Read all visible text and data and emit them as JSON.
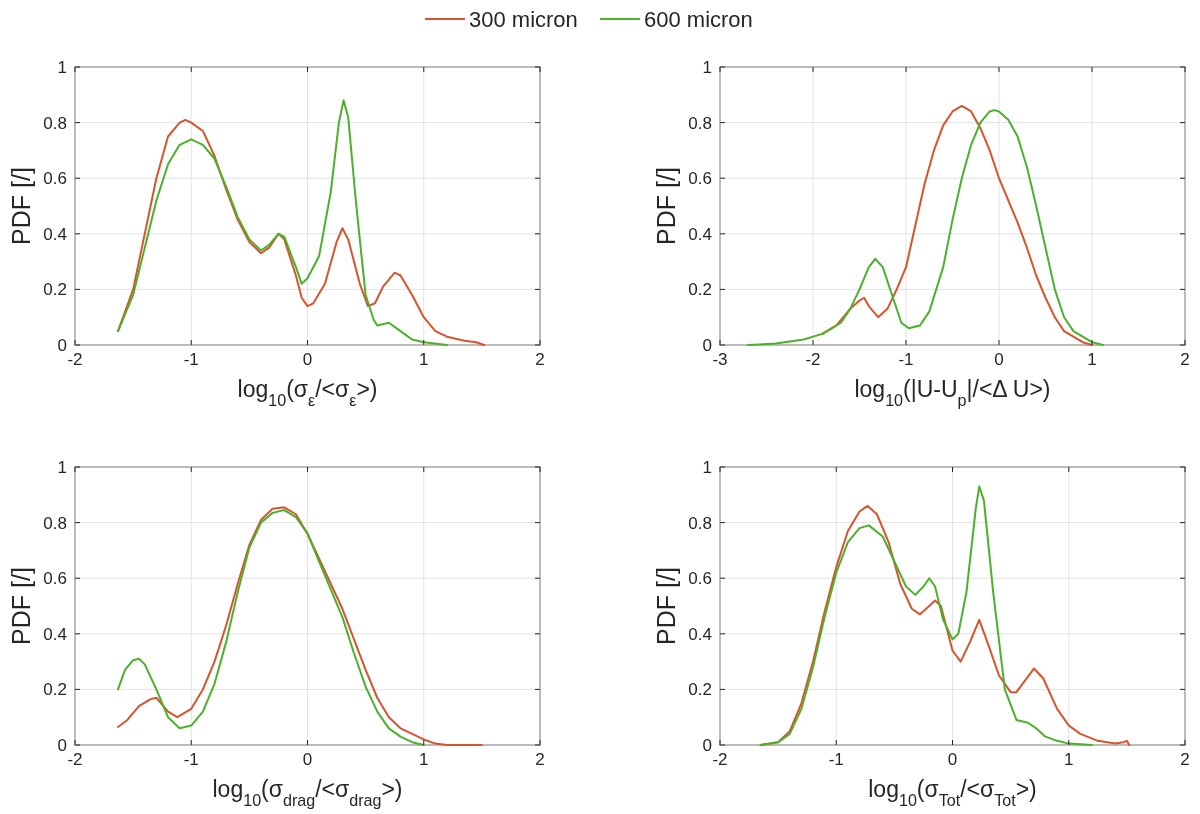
{
  "chart_data": [
    {
      "type": "line",
      "xlabel": "log$_{10}$(σ$_{ε}$/<σ$_{ε}$>)",
      "ylabel": "PDF [/]",
      "xlim": [
        -2,
        2
      ],
      "ylim": [
        0,
        1
      ],
      "xticks": [
        -2,
        -1,
        0,
        1,
        2
      ],
      "yticks": [
        0,
        0.2,
        0.4,
        0.6,
        0.8,
        1
      ],
      "grid": true,
      "legend": "top",
      "series": [
        {
          "name": "300 micron",
          "color": "#d4552e",
          "x": [
            -1.63,
            -1.5,
            -1.4,
            -1.3,
            -1.2,
            -1.1,
            -1.05,
            -1,
            -0.9,
            -0.8,
            -0.7,
            -0.6,
            -0.5,
            -0.4,
            -0.33,
            -0.25,
            -0.2,
            -0.1,
            -0.05,
            0,
            0.05,
            0.15,
            0.25,
            0.3,
            0.35,
            0.45,
            0.52,
            0.58,
            0.65,
            0.75,
            0.8,
            0.9,
            1,
            1.1,
            1.2,
            1.35,
            1.45,
            1.52
          ],
          "values": [
            0.05,
            0.2,
            0.4,
            0.6,
            0.75,
            0.8,
            0.81,
            0.8,
            0.77,
            0.68,
            0.56,
            0.45,
            0.37,
            0.33,
            0.35,
            0.4,
            0.38,
            0.25,
            0.17,
            0.14,
            0.15,
            0.22,
            0.37,
            0.42,
            0.38,
            0.22,
            0.14,
            0.15,
            0.21,
            0.26,
            0.25,
            0.18,
            0.1,
            0.05,
            0.03,
            0.015,
            0.01,
            0
          ]
        },
        {
          "name": "600 micron",
          "color": "#4cb02c",
          "x": [
            -1.63,
            -1.5,
            -1.4,
            -1.3,
            -1.2,
            -1.1,
            -1,
            -0.9,
            -0.8,
            -0.7,
            -0.6,
            -0.5,
            -0.4,
            -0.33,
            -0.25,
            -0.2,
            -0.1,
            -0.05,
            0,
            0.1,
            0.2,
            0.27,
            0.31,
            0.35,
            0.42,
            0.5,
            0.57,
            0.6,
            0.7,
            0.8,
            0.9,
            1,
            1.2
          ],
          "values": [
            0.05,
            0.18,
            0.35,
            0.52,
            0.65,
            0.72,
            0.74,
            0.72,
            0.67,
            0.57,
            0.46,
            0.38,
            0.34,
            0.36,
            0.4,
            0.39,
            0.28,
            0.22,
            0.24,
            0.32,
            0.55,
            0.8,
            0.88,
            0.82,
            0.5,
            0.18,
            0.09,
            0.07,
            0.08,
            0.05,
            0.02,
            0.01,
            0
          ]
        }
      ]
    },
    {
      "type": "line",
      "xlabel": "log$_{10}$(|U-U$_{p}$|/<Δ  U>)",
      "ylabel": "PDF [/]",
      "xlim": [
        -3,
        2
      ],
      "ylim": [
        0,
        1
      ],
      "xticks": [
        -3,
        -2,
        -1,
        0,
        1,
        2
      ],
      "yticks": [
        0,
        0.2,
        0.4,
        0.6,
        0.8,
        1
      ],
      "grid": true,
      "series": [
        {
          "color": "#d4552e",
          "x": [
            -1.9,
            -1.75,
            -1.6,
            -1.5,
            -1.45,
            -1.4,
            -1.3,
            -1.2,
            -1.1,
            -1,
            -0.9,
            -0.8,
            -0.7,
            -0.6,
            -0.5,
            -0.4,
            -0.3,
            -0.2,
            -0.1,
            0,
            0.1,
            0.2,
            0.3,
            0.4,
            0.5,
            0.6,
            0.7,
            0.8,
            0.9,
            1
          ],
          "values": [
            0.04,
            0.07,
            0.13,
            0.16,
            0.17,
            0.14,
            0.1,
            0.13,
            0.2,
            0.28,
            0.43,
            0.58,
            0.7,
            0.79,
            0.84,
            0.86,
            0.84,
            0.78,
            0.7,
            0.6,
            0.52,
            0.44,
            0.35,
            0.25,
            0.17,
            0.1,
            0.05,
            0.03,
            0.01,
            0
          ]
        },
        {
          "color": "#4cb02c",
          "x": [
            -2.7,
            -2.4,
            -2.1,
            -1.9,
            -1.7,
            -1.6,
            -1.5,
            -1.4,
            -1.33,
            -1.25,
            -1.15,
            -1.05,
            -0.97,
            -0.85,
            -0.75,
            -0.6,
            -0.5,
            -0.4,
            -0.3,
            -0.2,
            -0.1,
            -0.05,
            0,
            0.1,
            0.2,
            0.3,
            0.4,
            0.5,
            0.6,
            0.7,
            0.8,
            0.9,
            1,
            1.12
          ],
          "values": [
            0,
            0.005,
            0.02,
            0.04,
            0.08,
            0.13,
            0.2,
            0.28,
            0.31,
            0.28,
            0.18,
            0.08,
            0.06,
            0.07,
            0.12,
            0.28,
            0.45,
            0.6,
            0.72,
            0.8,
            0.84,
            0.845,
            0.84,
            0.81,
            0.75,
            0.64,
            0.5,
            0.35,
            0.2,
            0.1,
            0.05,
            0.03,
            0.01,
            0
          ]
        }
      ]
    },
    {
      "type": "line",
      "xlabel": "log$_{10}$(σ$_{drag}$/<σ$_{drag}$>)",
      "ylabel": "PDF [/]",
      "xlim": [
        -2,
        2
      ],
      "ylim": [
        0,
        1
      ],
      "xticks": [
        -2,
        -1,
        0,
        1,
        2
      ],
      "yticks": [
        0,
        0.2,
        0.4,
        0.6,
        0.8,
        1
      ],
      "grid": true,
      "series": [
        {
          "color": "#d4552e",
          "x": [
            -1.63,
            -1.55,
            -1.45,
            -1.35,
            -1.3,
            -1.2,
            -1.12,
            -1,
            -0.9,
            -0.8,
            -0.7,
            -0.6,
            -0.5,
            -0.4,
            -0.3,
            -0.2,
            -0.1,
            0,
            0.1,
            0.2,
            0.3,
            0.4,
            0.5,
            0.6,
            0.7,
            0.8,
            0.9,
            1,
            1.1,
            1.2,
            1.5
          ],
          "values": [
            0.065,
            0.09,
            0.14,
            0.165,
            0.17,
            0.12,
            0.1,
            0.13,
            0.2,
            0.3,
            0.43,
            0.58,
            0.72,
            0.81,
            0.85,
            0.855,
            0.83,
            0.76,
            0.67,
            0.58,
            0.49,
            0.38,
            0.27,
            0.17,
            0.1,
            0.06,
            0.04,
            0.02,
            0.005,
            0,
            0
          ]
        },
        {
          "color": "#4cb02c",
          "x": [
            -1.63,
            -1.57,
            -1.5,
            -1.45,
            -1.4,
            -1.3,
            -1.2,
            -1.1,
            -1,
            -0.9,
            -0.8,
            -0.7,
            -0.6,
            -0.5,
            -0.4,
            -0.3,
            -0.2,
            -0.1,
            0,
            0.1,
            0.2,
            0.3,
            0.4,
            0.5,
            0.6,
            0.7,
            0.8,
            0.9,
            1
          ],
          "values": [
            0.2,
            0.27,
            0.305,
            0.31,
            0.29,
            0.2,
            0.1,
            0.06,
            0.07,
            0.12,
            0.22,
            0.37,
            0.55,
            0.71,
            0.8,
            0.835,
            0.845,
            0.82,
            0.76,
            0.66,
            0.56,
            0.46,
            0.33,
            0.21,
            0.12,
            0.06,
            0.03,
            0.01,
            0
          ]
        }
      ]
    },
    {
      "type": "line",
      "xlabel": "log$_{10}$(σ$_{Tot}$/<σ$_{Tot}$>)",
      "ylabel": "PDF [/]",
      "xlim": [
        -2,
        2
      ],
      "ylim": [
        0,
        1
      ],
      "xticks": [
        -2,
        -1,
        0,
        1,
        2
      ],
      "yticks": [
        0,
        0.2,
        0.4,
        0.6,
        0.8,
        1
      ],
      "grid": true,
      "series": [
        {
          "color": "#d4552e",
          "x": [
            -1.65,
            -1.5,
            -1.4,
            -1.3,
            -1.2,
            -1.1,
            -1,
            -0.9,
            -0.8,
            -0.73,
            -0.65,
            -0.55,
            -0.45,
            -0.35,
            -0.28,
            -0.2,
            -0.15,
            -0.1,
            -0.05,
            0,
            0.07,
            0.15,
            0.23,
            0.3,
            0.4,
            0.5,
            0.55,
            0.62,
            0.7,
            0.78,
            0.9,
            1,
            1.1,
            1.25,
            1.4,
            1.47,
            1.5,
            1.52
          ],
          "values": [
            0,
            0.01,
            0.05,
            0.15,
            0.3,
            0.48,
            0.64,
            0.77,
            0.84,
            0.86,
            0.83,
            0.73,
            0.58,
            0.49,
            0.47,
            0.5,
            0.52,
            0.5,
            0.42,
            0.34,
            0.3,
            0.37,
            0.45,
            0.37,
            0.25,
            0.19,
            0.19,
            0.23,
            0.275,
            0.24,
            0.13,
            0.07,
            0.04,
            0.015,
            0.005,
            0.01,
            0.015,
            0
          ]
        },
        {
          "color": "#4cb02c",
          "x": [
            -1.65,
            -1.5,
            -1.4,
            -1.3,
            -1.2,
            -1.1,
            -1,
            -0.9,
            -0.8,
            -0.72,
            -0.6,
            -0.5,
            -0.4,
            -0.32,
            -0.25,
            -0.2,
            -0.15,
            -0.08,
            0,
            0.05,
            0.12,
            0.2,
            0.23,
            0.27,
            0.35,
            0.45,
            0.55,
            0.65,
            0.72,
            0.8,
            0.9,
            1,
            1.2
          ],
          "values": [
            0,
            0.01,
            0.04,
            0.13,
            0.28,
            0.46,
            0.62,
            0.73,
            0.78,
            0.79,
            0.75,
            0.66,
            0.57,
            0.54,
            0.57,
            0.6,
            0.57,
            0.45,
            0.38,
            0.4,
            0.55,
            0.85,
            0.93,
            0.88,
            0.55,
            0.2,
            0.09,
            0.08,
            0.06,
            0.03,
            0.015,
            0.005,
            0
          ]
        }
      ]
    }
  ]
}
